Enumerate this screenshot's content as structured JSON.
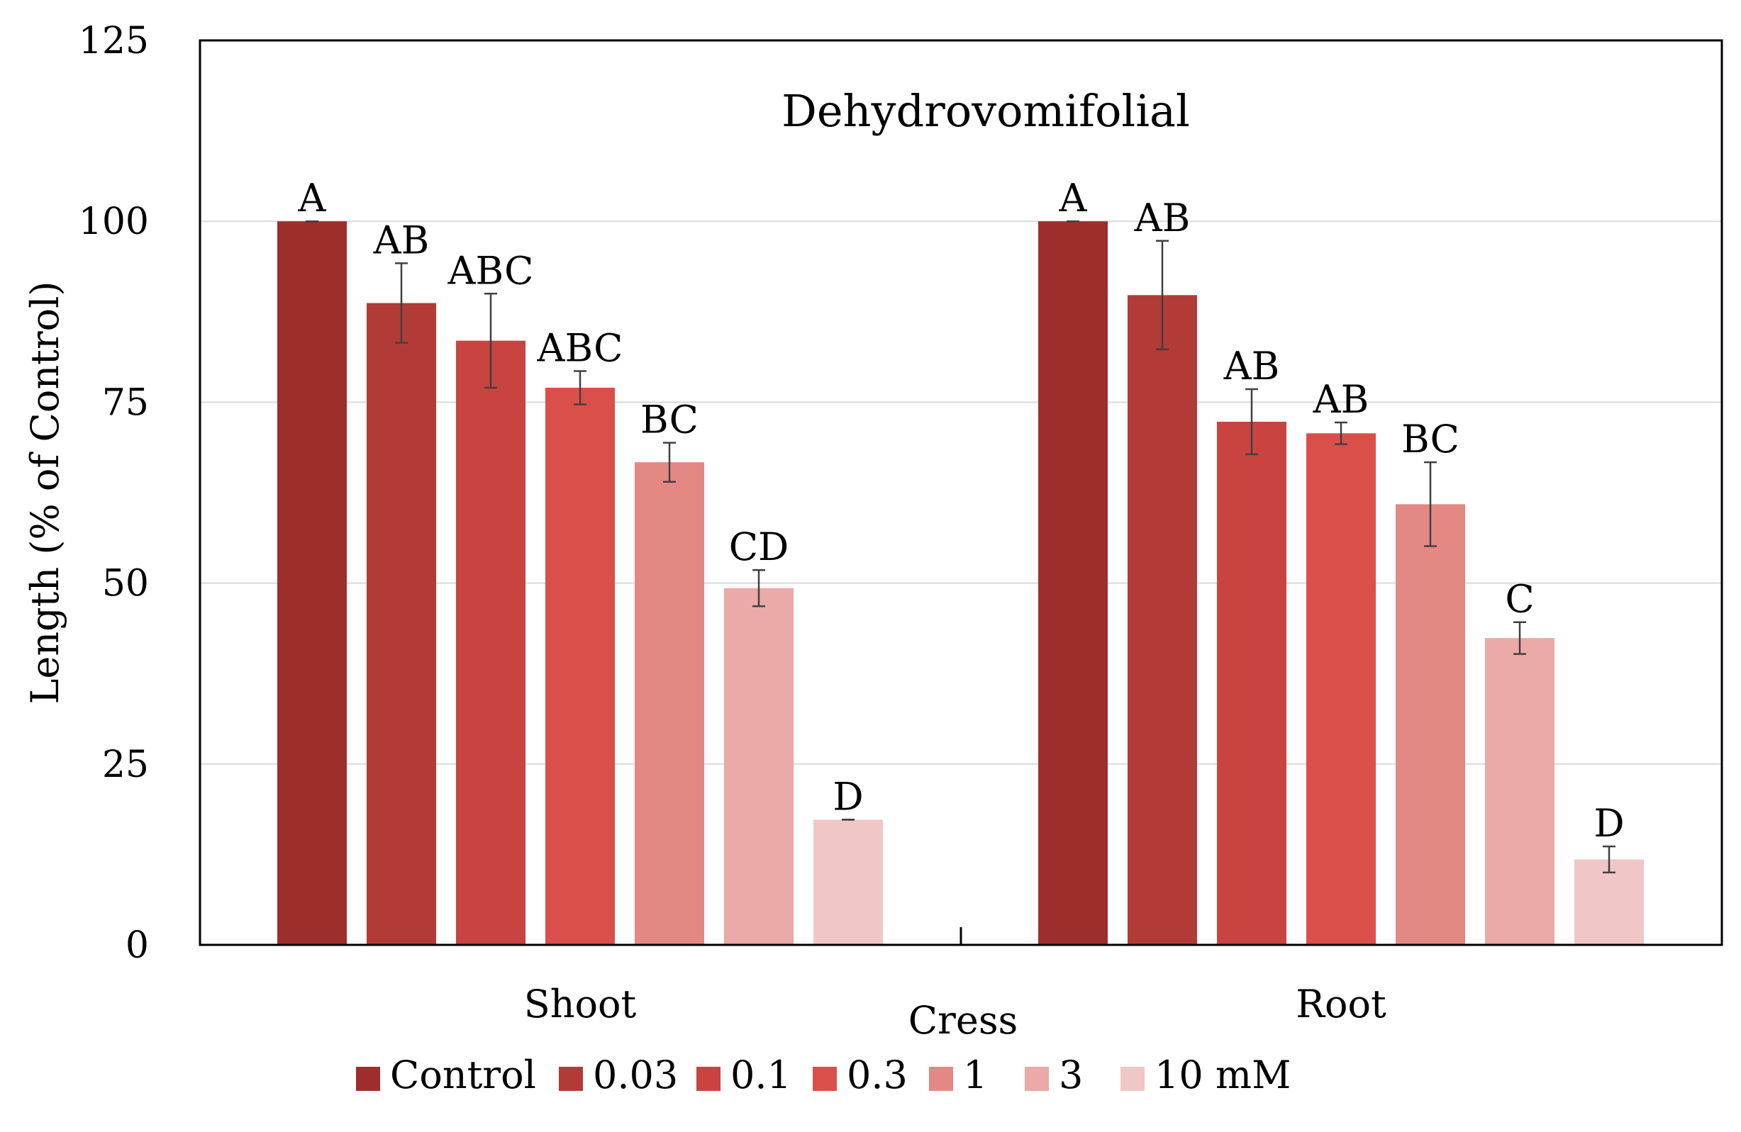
{
  "chart_data": {
    "type": "bar",
    "title": "Dehydrovomifolial",
    "ylabel": "Length (% of Control)",
    "xlabel": "Cress",
    "ylim": [
      0,
      125
    ],
    "yticks": [
      0,
      25,
      50,
      75,
      100,
      125
    ],
    "grid": true,
    "legend_position": "bottom",
    "categories": [
      "Shoot",
      "Root"
    ],
    "series": [
      {
        "name": "Control",
        "color": "#9e2e2b",
        "values": [
          100,
          100
        ],
        "errors": [
          0,
          0
        ],
        "letters": [
          "A",
          "A"
        ]
      },
      {
        "name": "0.03",
        "color": "#b33b37",
        "values": [
          88.7,
          89.8
        ],
        "errors": [
          5.5,
          7.5
        ],
        "letters": [
          "AB",
          "AB"
        ]
      },
      {
        "name": "0.1",
        "color": "#c94440",
        "values": [
          83.5,
          72.3
        ],
        "errors": [
          6.5,
          4.5
        ],
        "letters": [
          "ABC",
          "AB"
        ]
      },
      {
        "name": "0.3",
        "color": "#db4f4b",
        "values": [
          77,
          70.7
        ],
        "errors": [
          2.3,
          1.5
        ],
        "letters": [
          "ABC",
          "AB"
        ]
      },
      {
        "name": "1",
        "color": "#e48884",
        "values": [
          66.7,
          60.9
        ],
        "errors": [
          2.7,
          5.8
        ],
        "letters": [
          "BC",
          "BC"
        ]
      },
      {
        "name": "3",
        "color": "#eba9a7",
        "values": [
          49.3,
          42.4
        ],
        "errors": [
          2.5,
          2.2
        ],
        "letters": [
          "CD",
          "C"
        ]
      },
      {
        "name": "10 mM",
        "color": "#f0c7c6",
        "values": [
          17.3,
          11.8
        ],
        "errors": [
          0,
          1.8
        ],
        "letters": [
          "D",
          "D"
        ]
      }
    ]
  }
}
